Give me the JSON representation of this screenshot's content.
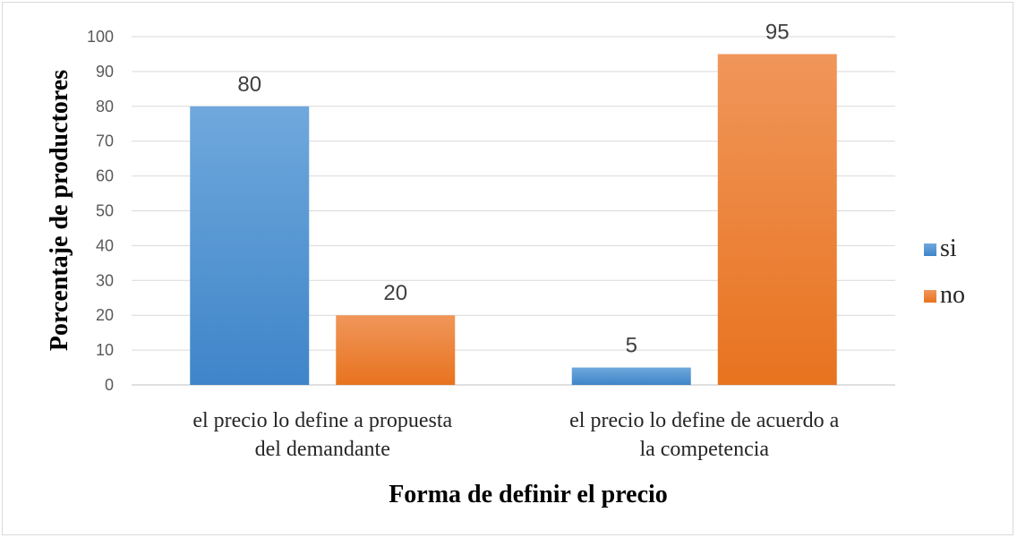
{
  "chart_data": {
    "type": "bar",
    "categories": [
      [
        "el precio lo define a propuesta",
        "del demandante"
      ],
      [
        "el precio lo define de acuerdo a",
        "la competencia"
      ]
    ],
    "series": [
      {
        "name": "si",
        "values": [
          80,
          5
        ],
        "color": "#4a8fd4"
      },
      {
        "name": "no",
        "values": [
          20,
          95
        ],
        "color": "#ef7f2c"
      }
    ],
    "xlabel": "Forma de definir el precio",
    "ylabel": "Porcentaje de productores",
    "ylim": [
      0,
      100
    ],
    "yticks": [
      0,
      10,
      20,
      30,
      40,
      50,
      60,
      70,
      80,
      90,
      100
    ],
    "grid": true,
    "legend_position": "right"
  }
}
